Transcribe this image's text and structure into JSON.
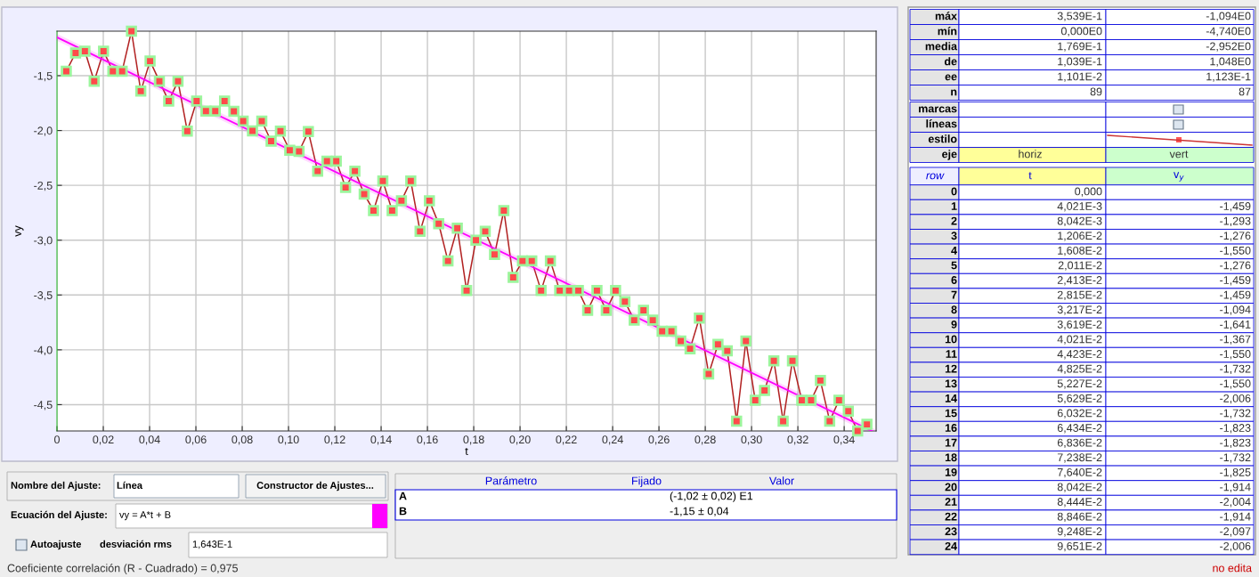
{
  "chart_data": {
    "type": "line",
    "xlabel": "t",
    "ylabel": "vy",
    "x": [
      0.004021,
      0.008042,
      0.01206,
      0.01608,
      0.02011,
      0.02413,
      0.02815,
      0.03217,
      0.03619,
      0.04021,
      0.04423,
      0.04825,
      0.05227,
      0.05629,
      0.06032,
      0.06434,
      0.06836,
      0.07238,
      0.0764,
      0.08042,
      0.08444,
      0.08846,
      0.09248,
      0.09651,
      0.10053,
      0.10455,
      0.10857,
      0.11259,
      0.11661,
      0.12063,
      0.12465,
      0.12867,
      0.13269,
      0.13671,
      0.14074,
      0.14476,
      0.14878,
      0.1528,
      0.15682,
      0.16084,
      0.16486,
      0.16888,
      0.1729,
      0.17692,
      0.18095,
      0.18497,
      0.18899,
      0.19301,
      0.19703,
      0.20105,
      0.20507,
      0.20909,
      0.21311,
      0.21713,
      0.22116,
      0.22518,
      0.2292,
      0.23322,
      0.23724,
      0.24126,
      0.24528,
      0.2493,
      0.25332,
      0.25734,
      0.26137,
      0.26539,
      0.26941,
      0.27343,
      0.27745,
      0.28147,
      0.28549,
      0.28951,
      0.29353,
      0.29755,
      0.30158,
      0.3056,
      0.30962,
      0.31364,
      0.31766,
      0.32168,
      0.3257,
      0.32972,
      0.33374,
      0.33776,
      0.34179,
      0.34581,
      0.34983
    ],
    "series": [
      {
        "color": "#b22222",
        "marker": "square",
        "values": [
          -1.459,
          -1.293,
          -1.276,
          -1.55,
          -1.276,
          -1.459,
          -1.459,
          -1.094,
          -1.641,
          -1.367,
          -1.55,
          -1.732,
          -1.55,
          -2.006,
          -1.732,
          -1.823,
          -1.823,
          -1.732,
          -1.825,
          -1.914,
          -2.004,
          -1.914,
          -2.097,
          -2.006,
          -2.18,
          -2.19,
          -2.01,
          -2.37,
          -2.28,
          -2.28,
          -2.52,
          -2.37,
          -2.58,
          -2.73,
          -2.46,
          -2.73,
          -2.64,
          -2.46,
          -2.92,
          -2.64,
          -2.85,
          -3.19,
          -2.89,
          -3.46,
          -3.0,
          -2.92,
          -3.13,
          -2.73,
          -3.34,
          -3.19,
          -3.19,
          -3.46,
          -3.19,
          -3.46,
          -3.46,
          -3.46,
          -3.64,
          -3.46,
          -3.64,
          -3.46,
          -3.56,
          -3.73,
          -3.64,
          -3.73,
          -3.83,
          -3.83,
          -3.92,
          -3.99,
          -3.71,
          -4.22,
          -3.95,
          -4.01,
          -4.65,
          -3.92,
          -4.46,
          -4.37,
          -4.1,
          -4.65,
          -4.1,
          -4.46,
          -4.46,
          -4.28,
          -4.65,
          -4.46,
          -4.56,
          -4.74,
          -4.68
        ]
      },
      {
        "color": "#ff00ff",
        "marker": "none",
        "x": [
          0,
          0.352
        ],
        "values": [
          -1.15,
          -4.74
        ]
      }
    ],
    "xlim": [
      0,
      0.3538
    ],
    "ylim": [
      -4.74,
      -1.094
    ],
    "xticks": [
      0,
      {
        "value": 0.02,
        "label": "0,02"
      },
      {
        "value": 0.04,
        "label": "0,04"
      },
      {
        "value": 0.06,
        "label": "0,06"
      },
      {
        "value": 0.08,
        "label": "0,08"
      },
      {
        "value": 0.1,
        "label": "0,10"
      },
      {
        "value": 0.12,
        "label": "0,12"
      },
      {
        "value": 0.14,
        "label": "0,14"
      },
      {
        "value": 0.16,
        "label": "0,16"
      },
      {
        "value": 0.18,
        "label": "0,18"
      },
      {
        "value": 0.2,
        "label": "0,20"
      },
      {
        "value": 0.22,
        "label": "0,22"
      },
      {
        "value": 0.24,
        "label": "0,24"
      },
      {
        "value": 0.26,
        "label": "0,26"
      },
      {
        "value": 0.28,
        "label": "0,28"
      },
      {
        "value": 0.3,
        "label": "0,30"
      },
      {
        "value": 0.32,
        "label": "0,32"
      },
      {
        "value": 0.34,
        "label": "0,34"
      }
    ],
    "yticks": [
      {
        "value": -1.5,
        "label": "-1,5"
      },
      {
        "value": -2.0,
        "label": "-2,0"
      },
      {
        "value": -2.5,
        "label": "-2,5"
      },
      {
        "value": -3.0,
        "label": "-3,0"
      },
      {
        "value": -3.5,
        "label": "-3,5"
      },
      {
        "value": -4.0,
        "label": "-4,0"
      },
      {
        "value": -4.5,
        "label": "-4,5"
      }
    ],
    "grid": true,
    "legend": false,
    "annotations": [
      "máx",
      "3,539E-1",
      "-1,094E0",
      "mín",
      "0,000E0",
      "-4,740E0",
      "media",
      "1,769E-1",
      "-2,952E0",
      "de",
      "1,039E-1",
      "1,048E0",
      "ee",
      "1,101E-2",
      "1,123E-1",
      "n",
      "89",
      "87",
      "marcas",
      "líneas",
      "estilo",
      "eje",
      "horiz",
      "vert",
      "row",
      "t",
      "v$_{y}$",
      "0",
      "0,000",
      "1",
      "4,021E-3",
      "-1,459",
      "2",
      "8,042E-3",
      "-1,293",
      "3",
      "1,206E-2",
      "-1,276",
      "4",
      "1,608E-2",
      "-1,550",
      "5",
      "2,011E-2",
      "-1,276",
      "6",
      "2,413E-2",
      "-1,459",
      "7",
      "2,815E-2",
      "-1,459",
      "8",
      "3,217E-2",
      "-1,094",
      "9",
      "3,619E-2",
      "-1,641",
      "10",
      "4,021E-2",
      "-1,367",
      "11",
      "4,423E-2",
      "-1,550",
      "12",
      "4,825E-2",
      "-1,732",
      "13",
      "5,227E-2",
      "-1,550",
      "14",
      "5,629E-2",
      "-2,006",
      "15",
      "6,032E-2",
      "-1,732",
      "16",
      "6,434E-2",
      "-1,823",
      "17",
      "6,836E-2",
      "-1,823",
      "18",
      "7,238E-2",
      "-1,732",
      "19",
      "7,640E-2",
      "-1,825",
      "20",
      "8,042E-2",
      "-1,914",
      "21",
      "8,444E-2",
      "-2,004",
      "22",
      "8,846E-2",
      "-1,914",
      "23",
      "9,248E-2",
      "-2,097",
      "24",
      "9,651E-2",
      "-2,006",
      "Nombre del Ajuste:",
      "Línea",
      "Constructor de Ajustes...",
      "Ecuación del Ajuste:",
      "vy = A*t + B",
      "Autoajuste",
      "desviación rms",
      "1,643E-1",
      "Parámetro",
      "Fijado",
      "Valor",
      "A",
      "(-1,02 ± 0,02) E1",
      "B",
      "-1,15 ± 0,04",
      "Coeficiente correlación (R - Cuadrado) = 0,975",
      "no edita"
    ]
  }
}
